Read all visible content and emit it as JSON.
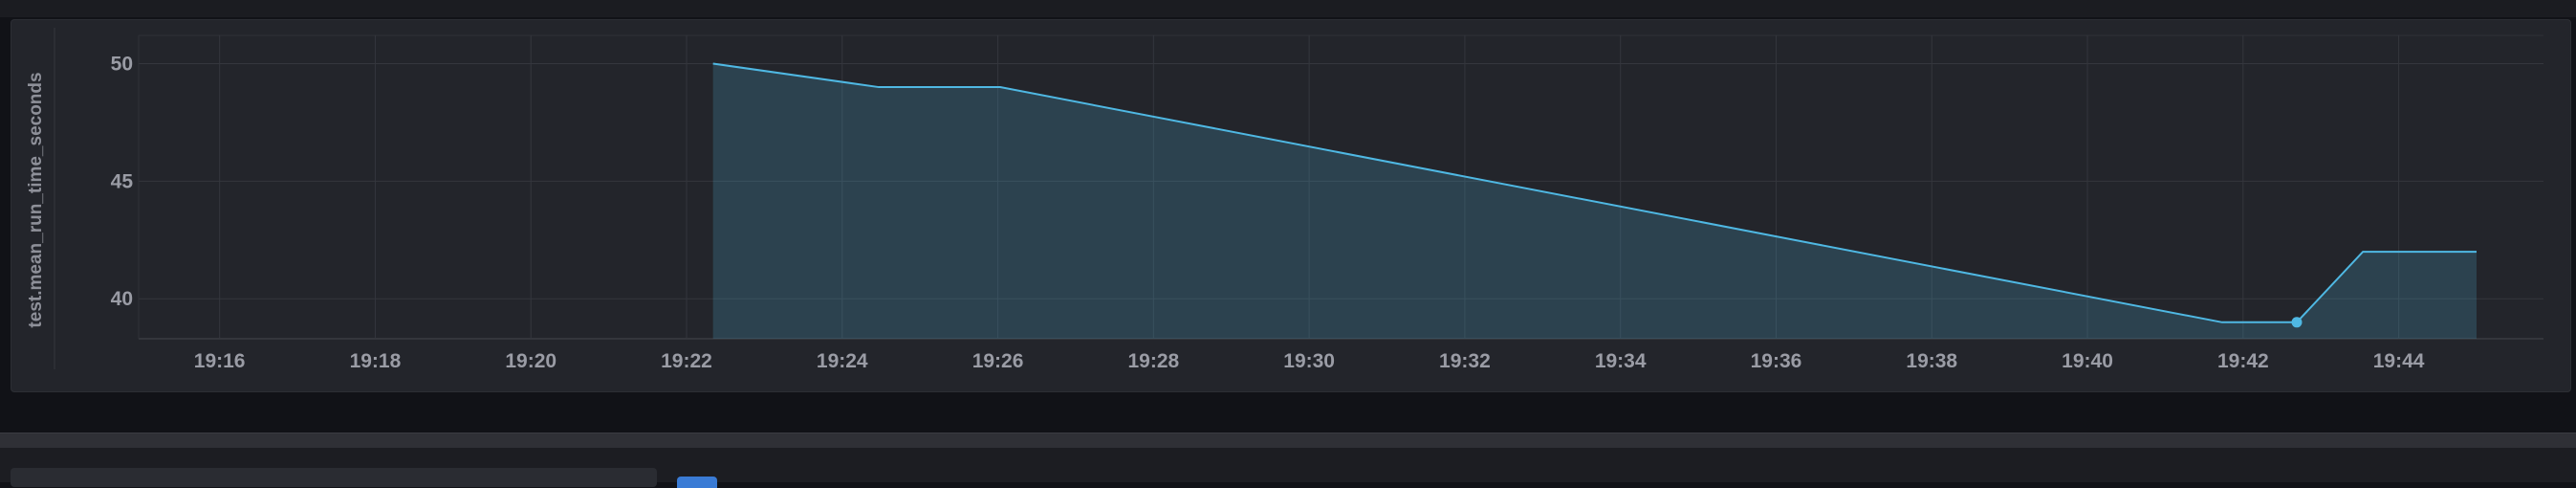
{
  "chart_data": {
    "type": "area",
    "title": "",
    "ylabel": "test.mean_run_time_seconds",
    "xlabel": "",
    "ylim": [
      38.3,
      51.2
    ],
    "y_ticks": [
      40,
      45,
      50
    ],
    "x_ticks": [
      {
        "label": "19:16",
        "t": 16
      },
      {
        "label": "19:18",
        "t": 18
      },
      {
        "label": "19:20",
        "t": 20
      },
      {
        "label": "19:22",
        "t": 22
      },
      {
        "label": "19:24",
        "t": 24
      },
      {
        "label": "19:26",
        "t": 26
      },
      {
        "label": "19:28",
        "t": 28
      },
      {
        "label": "19:30",
        "t": 30
      },
      {
        "label": "19:32",
        "t": 32
      },
      {
        "label": "19:34",
        "t": 34
      },
      {
        "label": "19:36",
        "t": 36
      },
      {
        "label": "19:38",
        "t": 38
      },
      {
        "label": "19:40",
        "t": 40
      },
      {
        "label": "19:42",
        "t": 42
      },
      {
        "label": "19:44",
        "t": 44
      }
    ],
    "xlim": [
      14.96,
      45.86
    ],
    "grid": true,
    "series": [
      {
        "color": "#4fb8e3",
        "points": [
          {
            "t": 22.34,
            "y": 50
          },
          {
            "t": 24.47,
            "y": 49
          },
          {
            "t": 26.03,
            "y": 49
          },
          {
            "t": 41.73,
            "y": 39
          },
          {
            "t": 42.69,
            "y": 39
          },
          {
            "t": 43.54,
            "y": 42
          },
          {
            "t": 45.0,
            "y": 42
          }
        ],
        "highlight": {
          "t": 42.69,
          "y": 39
        }
      }
    ]
  }
}
